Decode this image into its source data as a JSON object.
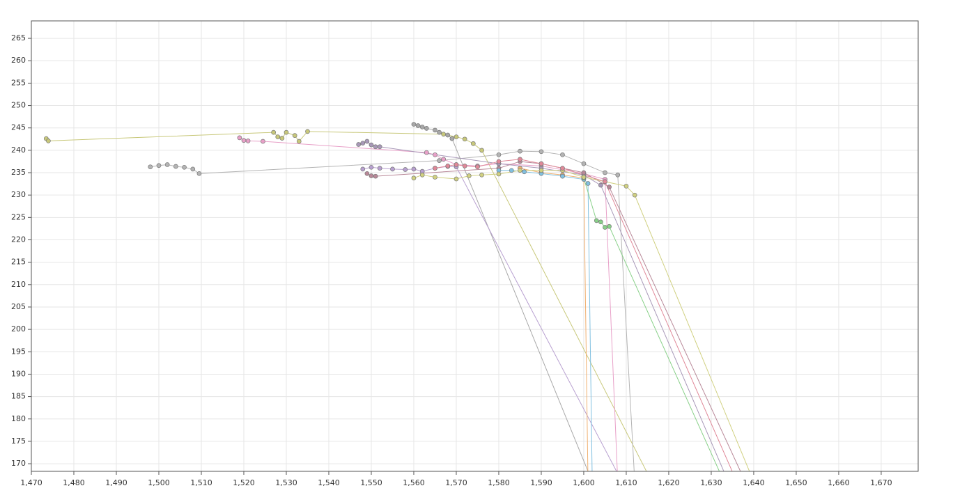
{
  "chart_data": {
    "type": "scatter-line",
    "xlim": [
      1470,
      1678.7
    ],
    "ylim": [
      168.3,
      268.9
    ],
    "grid": true,
    "xticks": [
      {
        "value": 1470,
        "label": "1,470"
      },
      {
        "value": 1480,
        "label": "1,480"
      },
      {
        "value": 1490,
        "label": "1,490"
      },
      {
        "value": 1500,
        "label": "1,500"
      },
      {
        "value": 1510,
        "label": "1,510"
      },
      {
        "value": 1520,
        "label": "1,520"
      },
      {
        "value": 1530,
        "label": "1,530"
      },
      {
        "value": 1540,
        "label": "1,540"
      },
      {
        "value": 1550,
        "label": "1,550"
      },
      {
        "value": 1560,
        "label": "1,560"
      },
      {
        "value": 1570,
        "label": "1,570"
      },
      {
        "value": 1580,
        "label": "1,580"
      },
      {
        "value": 1590,
        "label": "1,590"
      },
      {
        "value": 1600,
        "label": "1,600"
      },
      {
        "value": 1610,
        "label": "1,610"
      },
      {
        "value": 1620,
        "label": "1,620"
      },
      {
        "value": 1630,
        "label": "1,630"
      },
      {
        "value": 1640,
        "label": "1,640"
      },
      {
        "value": 1650,
        "label": "1,650"
      },
      {
        "value": 1660,
        "label": "1,660"
      },
      {
        "value": 1670,
        "label": "1,670"
      }
    ],
    "yticks": [
      170,
      175,
      180,
      185,
      190,
      195,
      200,
      205,
      210,
      215,
      220,
      225,
      230,
      235,
      240,
      245,
      250,
      255,
      260,
      265
    ],
    "series": [
      {
        "color": "#c8c87a",
        "x": [
          1473.5,
          1474,
          1527,
          1528,
          1529,
          1530,
          1532,
          1533,
          1535,
          1567,
          1570,
          1572,
          1574,
          1576,
          1616
        ],
        "values": [
          242.6,
          242.1,
          244,
          243,
          242.7,
          244,
          243.3,
          242,
          244.2,
          243.6,
          243,
          242.5,
          241.5,
          240,
          166
        ]
      },
      {
        "color": "#b4b4b4",
        "x": [
          1498,
          1500,
          1502,
          1504,
          1506,
          1508,
          1509.5,
          1566,
          1580,
          1585,
          1590,
          1595,
          1600,
          1605,
          1608,
          1612
        ],
        "values": [
          236.3,
          236.6,
          236.8,
          236.4,
          236.2,
          235.8,
          234.8,
          237.7,
          239,
          239.8,
          239.7,
          239,
          237,
          235,
          234.5,
          166
        ]
      },
      {
        "color": "#e8a0c8",
        "x": [
          1519,
          1520,
          1521,
          1524.5,
          1563,
          1565,
          1567,
          1570,
          1575,
          1580,
          1590,
          1600,
          1605,
          1608
        ],
        "values": [
          242.8,
          242.2,
          242.1,
          242,
          239.5,
          239,
          238,
          236.8,
          236.5,
          237,
          236.5,
          234.8,
          233.5,
          166
        ]
      },
      {
        "color": "#a898b8",
        "x": [
          1547,
          1548,
          1549,
          1550,
          1551,
          1552,
          1580,
          1590,
          1600,
          1604,
          1634
        ],
        "values": [
          241.3,
          241.6,
          242,
          241.2,
          240.8,
          240.8,
          237,
          236,
          234.5,
          232.2,
          166
        ]
      },
      {
        "color": "#a8a8a8",
        "x": [
          1560,
          1561,
          1562,
          1563,
          1565,
          1566,
          1568,
          1569,
          1602
        ],
        "values": [
          245.8,
          245.5,
          245.2,
          244.9,
          244.5,
          244,
          243.4,
          242.6,
          166
        ]
      },
      {
        "color": "#b88898",
        "x": [
          1549,
          1550,
          1551,
          1580,
          1585,
          1590,
          1600,
          1606,
          1638
        ],
        "values": [
          234.8,
          234.3,
          234.2,
          236,
          237.5,
          237,
          235,
          231.8,
          166
        ]
      },
      {
        "color": "#b8a0d0",
        "x": [
          1548,
          1550,
          1552,
          1555,
          1558,
          1560,
          1562,
          1565,
          1568,
          1570,
          1609
        ],
        "values": [
          235.8,
          236.2,
          236,
          235.8,
          235.7,
          235.8,
          235.3,
          236,
          236.4,
          236.3,
          166
        ]
      },
      {
        "color": "#f0b070",
        "x": [
          1585,
          1590,
          1595,
          1600,
          1601
        ],
        "values": [
          236,
          235,
          234.5,
          233.8,
          166
        ]
      },
      {
        "color": "#80c0e0",
        "x": [
          1580,
          1583,
          1586,
          1590,
          1595,
          1600,
          1601,
          1602
        ],
        "values": [
          235.5,
          235.5,
          235.2,
          234.8,
          234.2,
          233.5,
          232.6,
          166
        ]
      },
      {
        "color": "#88d088",
        "x": [
          1600,
          1603,
          1604,
          1605,
          1606,
          1633
        ],
        "values": [
          233.8,
          224.3,
          224,
          222.8,
          223,
          166
        ]
      },
      {
        "color": "#d0d080",
        "x": [
          1560,
          1562,
          1565,
          1570,
          1573,
          1576,
          1580,
          1585,
          1590,
          1595,
          1600,
          1605,
          1610,
          1612,
          1640
        ],
        "values": [
          233.8,
          234.5,
          234,
          233.6,
          234.3,
          234.5,
          234.7,
          235.5,
          235.5,
          235.5,
          234,
          233,
          232,
          230,
          166
        ]
      },
      {
        "color": "#e08898",
        "x": [
          1565,
          1568,
          1570,
          1572,
          1575,
          1580,
          1585,
          1590,
          1595,
          1605,
          1636
        ],
        "values": [
          236,
          236.5,
          236.8,
          236.5,
          236.3,
          237.5,
          238,
          237,
          236,
          233,
          166
        ]
      }
    ]
  }
}
